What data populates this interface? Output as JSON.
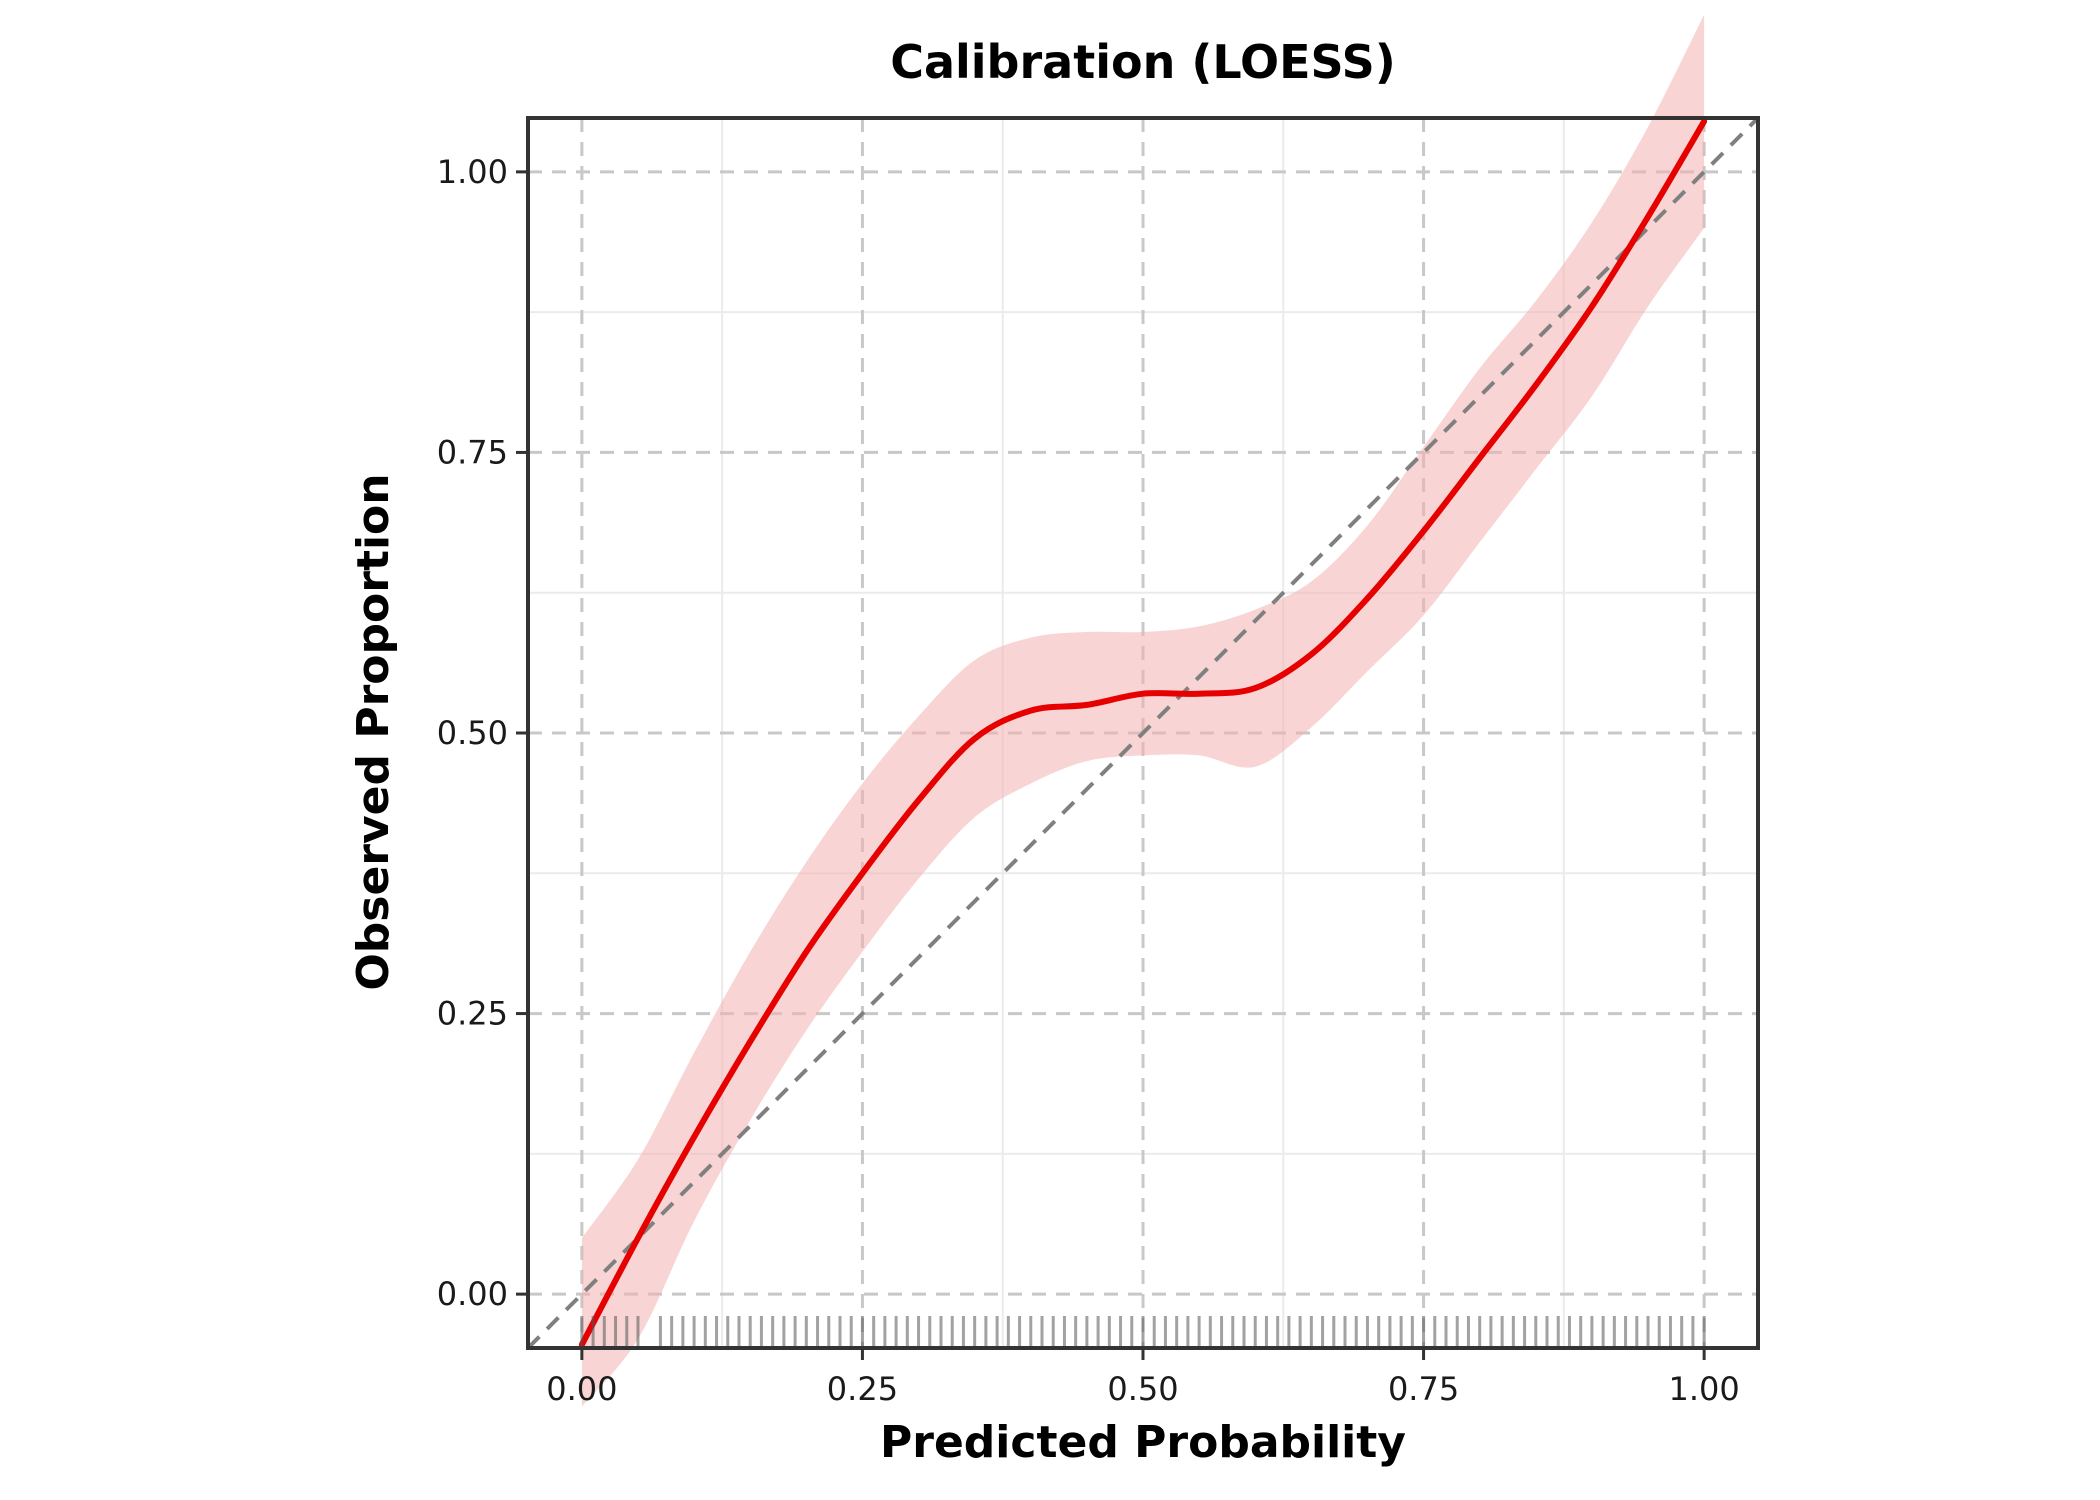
{
  "chart_data": {
    "type": "line",
    "title": "Calibration (LOESS)",
    "xlabel": "Predicted Probability",
    "ylabel": "Observed Proportion",
    "xlim": [
      -0.048,
      1.048
    ],
    "ylim": [
      -0.048,
      1.048
    ],
    "x_ticks": [
      0,
      0.25,
      0.5,
      0.75,
      1
    ],
    "y_ticks": [
      0,
      0.25,
      0.5,
      0.75,
      1
    ],
    "x_tick_labels": [
      "0.00",
      "0.25",
      "0.50",
      "0.75",
      "1.00"
    ],
    "y_tick_labels": [
      "0.00",
      "0.25",
      "0.50",
      "0.75",
      "1.00"
    ],
    "grid": true,
    "reference_line": {
      "x": [
        0,
        1
      ],
      "y": [
        0,
        1
      ],
      "style": "dashed",
      "color": "#808080"
    },
    "series": [
      {
        "x": [
          0.0,
          0.05,
          0.1,
          0.15,
          0.2,
          0.25,
          0.3,
          0.35,
          0.4,
          0.45,
          0.5,
          0.55,
          0.6,
          0.65,
          0.7,
          0.75,
          0.8,
          0.85,
          0.9,
          0.95,
          1.0
        ],
        "y": [
          -0.045,
          0.05,
          0.14,
          0.225,
          0.305,
          0.375,
          0.44,
          0.495,
          0.52,
          0.525,
          0.535,
          0.535,
          0.54,
          0.57,
          0.62,
          0.68,
          0.745,
          0.81,
          0.88,
          0.96,
          1.045
        ],
        "lower": [
          -0.1,
          -0.04,
          0.065,
          0.155,
          0.235,
          0.305,
          0.37,
          0.425,
          0.455,
          0.475,
          0.48,
          0.48,
          0.47,
          0.505,
          0.555,
          0.605,
          0.67,
          0.735,
          0.8,
          0.88,
          0.95
        ],
        "upper": [
          0.05,
          0.12,
          0.215,
          0.305,
          0.385,
          0.455,
          0.515,
          0.565,
          0.585,
          0.59,
          0.59,
          0.595,
          0.61,
          0.635,
          0.685,
          0.755,
          0.825,
          0.885,
          0.955,
          1.04,
          1.14
        ],
        "color": "#e60000",
        "band_color": "#f4b0b0"
      }
    ],
    "rug": [
      0.0,
      0.01,
      0.02,
      0.03,
      0.04,
      0.05,
      0.07,
      0.08,
      0.09,
      0.1,
      0.11,
      0.12,
      0.13,
      0.14,
      0.15,
      0.16,
      0.17,
      0.18,
      0.19,
      0.2,
      0.21,
      0.22,
      0.23,
      0.24,
      0.25,
      0.26,
      0.27,
      0.28,
      0.29,
      0.3,
      0.31,
      0.32,
      0.33,
      0.34,
      0.35,
      0.36,
      0.37,
      0.38,
      0.39,
      0.4,
      0.41,
      0.42,
      0.43,
      0.44,
      0.45,
      0.46,
      0.47,
      0.48,
      0.49,
      0.5,
      0.51,
      0.52,
      0.53,
      0.54,
      0.55,
      0.56,
      0.57,
      0.58,
      0.59,
      0.6,
      0.61,
      0.62,
      0.63,
      0.64,
      0.65,
      0.66,
      0.67,
      0.68,
      0.69,
      0.7,
      0.71,
      0.72,
      0.73,
      0.74,
      0.75,
      0.76,
      0.77,
      0.78,
      0.79,
      0.8,
      0.81,
      0.82,
      0.83,
      0.84,
      0.85,
      0.86,
      0.87,
      0.88,
      0.89,
      0.9,
      0.91,
      0.92,
      0.93,
      0.94,
      0.95,
      0.96,
      0.97,
      0.98,
      0.99,
      1.0
    ]
  }
}
